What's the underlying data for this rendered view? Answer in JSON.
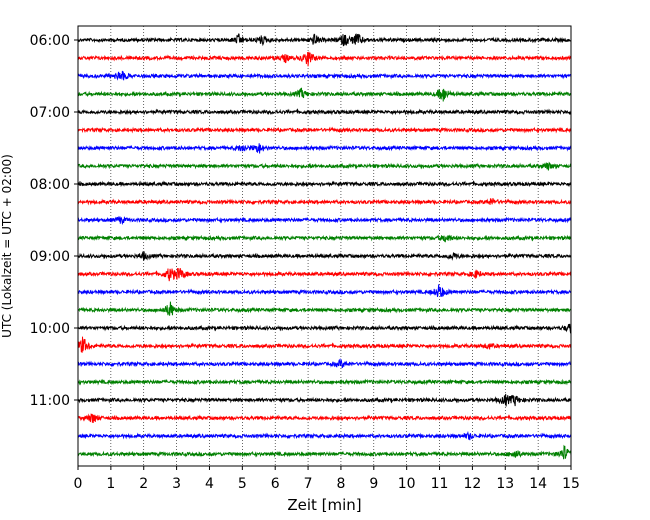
{
  "chart_data": {
    "type": "line",
    "title": "",
    "xlabel": "Zeit  [min]",
    "ylabel": "UTC (Lokalzeit = UTC + 02:00)",
    "xlim": [
      0,
      15
    ],
    "x_ticks": [
      "0",
      "1",
      "2",
      "3",
      "4",
      "5",
      "6",
      "7",
      "8",
      "9",
      "10",
      "11",
      "12",
      "13",
      "14",
      "15"
    ],
    "y_ticks": [
      "06:00",
      "07:00",
      "08:00",
      "09:00",
      "10:00",
      "11:00"
    ],
    "grid": "vertical dotted lines at each minute",
    "trace_start_times_utc": [
      "06:00",
      "06:15",
      "06:30",
      "06:45",
      "07:00",
      "07:15",
      "07:30",
      "07:45",
      "08:00",
      "08:15",
      "08:30",
      "08:45",
      "09:00",
      "09:15",
      "09:30",
      "09:45",
      "10:00",
      "10:15",
      "10:30",
      "10:45",
      "11:00",
      "11:15",
      "11:30",
      "11:45"
    ],
    "trace_minutes": 15,
    "colors": [
      "#000000",
      "#ff0000",
      "#0000ff",
      "#008000"
    ],
    "events": [
      {
        "trace": 0,
        "minute": 4.9,
        "amp": 0.55
      },
      {
        "trace": 0,
        "minute": 5.6,
        "amp": 0.45
      },
      {
        "trace": 0,
        "minute": 7.2,
        "amp": 0.6
      },
      {
        "trace": 0,
        "minute": 8.1,
        "amp": 0.7
      },
      {
        "trace": 0,
        "minute": 8.5,
        "amp": 0.8
      },
      {
        "trace": 1,
        "minute": 6.3,
        "amp": 0.4
      },
      {
        "trace": 1,
        "minute": 7.0,
        "amp": 0.9
      },
      {
        "trace": 2,
        "minute": 1.3,
        "amp": 0.7
      },
      {
        "trace": 3,
        "minute": 6.8,
        "amp": 0.5
      },
      {
        "trace": 3,
        "minute": 11.1,
        "amp": 0.9
      },
      {
        "trace": 6,
        "minute": 5.0,
        "amp": 0.4
      },
      {
        "trace": 6,
        "minute": 5.5,
        "amp": 0.6
      },
      {
        "trace": 7,
        "minute": 14.3,
        "amp": 0.4
      },
      {
        "trace": 9,
        "minute": 12.6,
        "amp": 0.35
      },
      {
        "trace": 10,
        "minute": 1.3,
        "amp": 0.35
      },
      {
        "trace": 11,
        "minute": 11.2,
        "amp": 0.5
      },
      {
        "trace": 12,
        "minute": 2.0,
        "amp": 0.4
      },
      {
        "trace": 12,
        "minute": 11.4,
        "amp": 0.35
      },
      {
        "trace": 13,
        "minute": 2.8,
        "amp": 0.8
      },
      {
        "trace": 13,
        "minute": 3.1,
        "amp": 0.7
      },
      {
        "trace": 13,
        "minute": 12.1,
        "amp": 0.4
      },
      {
        "trace": 14,
        "minute": 11.0,
        "amp": 0.9
      },
      {
        "trace": 15,
        "minute": 2.8,
        "amp": 0.9
      },
      {
        "trace": 16,
        "minute": 15.0,
        "amp": 0.6
      },
      {
        "trace": 17,
        "minute": 0.15,
        "amp": 1.0
      },
      {
        "trace": 17,
        "minute": 12.5,
        "amp": 0.3
      },
      {
        "trace": 18,
        "minute": 8.0,
        "amp": 0.4
      },
      {
        "trace": 20,
        "minute": 13.0,
        "amp": 0.6
      },
      {
        "trace": 20,
        "minute": 13.3,
        "amp": 0.5
      },
      {
        "trace": 21,
        "minute": 0.45,
        "amp": 0.6
      },
      {
        "trace": 22,
        "minute": 11.9,
        "amp": 0.35
      },
      {
        "trace": 23,
        "minute": 13.3,
        "amp": 0.5
      },
      {
        "trace": 23,
        "minute": 14.8,
        "amp": 0.9
      }
    ]
  }
}
